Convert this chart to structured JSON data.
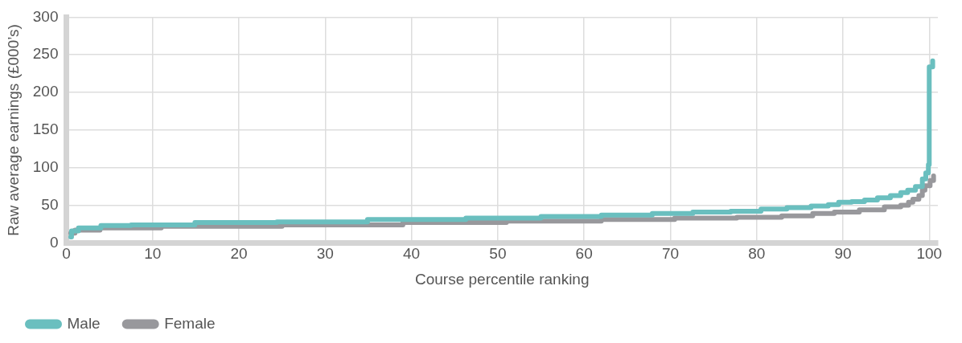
{
  "chart_data": {
    "type": "step",
    "xlabel": "Course percentile ranking",
    "ylabel": "Raw average earnings (£000’s)",
    "xlim": [
      0,
      101
    ],
    "xticks": [
      0,
      10,
      20,
      30,
      40,
      50,
      60,
      70,
      80,
      90,
      100
    ],
    "ylim": [
      0,
      300
    ],
    "yticks": [
      0,
      50,
      100,
      150,
      200,
      250,
      300
    ],
    "grid": true,
    "legend": "bottom",
    "line_style": "solid",
    "marker": "none",
    "series": [
      {
        "name": "Male",
        "color": "#6abfbf",
        "x": [
          0.5,
          0.6,
          1.4,
          4,
          7.5,
          14.9,
          24.4,
          34.9,
          46.3,
          55,
          62,
          67.9,
          72.6,
          77,
          80.5,
          83.5,
          86.3,
          88.3,
          89.5,
          91,
          92.5,
          94,
          95.5,
          96.7,
          97.5,
          98.4,
          99.2,
          99.6,
          99.9,
          100,
          100.4
        ],
        "values": [
          8,
          16,
          20,
          23,
          24,
          27,
          28,
          31,
          33,
          35,
          37,
          39,
          41,
          42,
          45,
          47,
          49,
          51,
          54,
          55,
          57,
          60,
          63,
          67,
          70,
          75,
          85,
          93,
          104,
          234,
          242
        ]
      },
      {
        "name": "Female",
        "color": "#98989c",
        "x": [
          0.5,
          1,
          3.9,
          11,
          25,
          39,
          51,
          62,
          70.5,
          77.7,
          82.9,
          86.5,
          89,
          91.9,
          94.8,
          96.7,
          97.6,
          98.1,
          98.8,
          99.2,
          99.5,
          100.1,
          100.5
        ],
        "values": [
          13,
          17,
          20,
          22,
          24,
          27,
          29,
          31,
          33,
          34,
          36,
          39,
          41,
          44,
          48,
          50,
          54,
          58,
          63,
          70,
          76,
          83,
          89
        ]
      }
    ]
  }
}
